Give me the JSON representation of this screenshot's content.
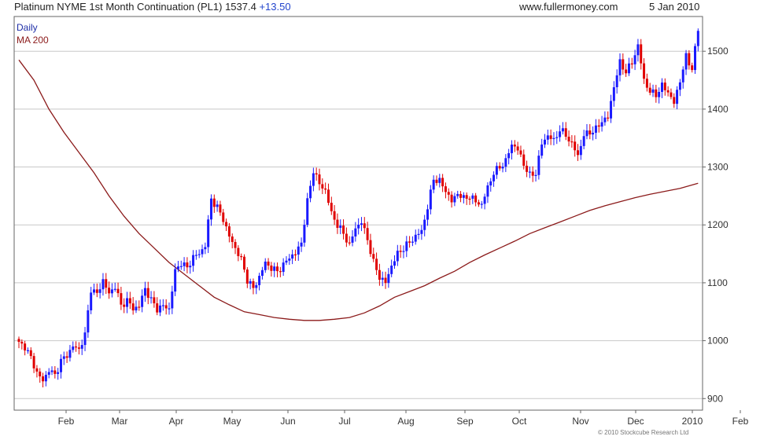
{
  "header": {
    "title": "Platinum NYME 1st Month Continuation (PL1) 1537.4",
    "change": "+13.50",
    "site": "www.fullermoney.com",
    "date": "5 Jan 2010"
  },
  "legend": {
    "daily": "Daily",
    "ma": "MA 200"
  },
  "copyright": "© 2010 Stockcube Research Ltd",
  "colors": {
    "up": "#1a1aff",
    "down": "#e00000",
    "ma": "#8b1a1a",
    "grid": "#c8c8c8",
    "frame": "#666666"
  },
  "chart_data": {
    "type": "candlestick",
    "y_axis": {
      "min": 880,
      "max": 1560,
      "ticks": [
        900,
        1000,
        1100,
        1200,
        1300,
        1400,
        1500
      ],
      "side": "right"
    },
    "x_axis": {
      "labels": [
        "Feb",
        "Mar",
        "Apr",
        "May",
        "Jun",
        "Jul",
        "Aug",
        "Sep",
        "Oct",
        "Nov",
        "Dec",
        "2010",
        "Feb"
      ]
    },
    "grid": true,
    "closes": [
      [
        0,
        995
      ],
      [
        2,
        990
      ],
      [
        4,
        970
      ],
      [
        6,
        945
      ],
      [
        8,
        930
      ],
      [
        10,
        950
      ],
      [
        12,
        940
      ],
      [
        14,
        965
      ],
      [
        16,
        975
      ],
      [
        18,
        990
      ],
      [
        20,
        985
      ],
      [
        22,
        1010
      ],
      [
        24,
        1090
      ],
      [
        26,
        1080
      ],
      [
        28,
        1105
      ],
      [
        30,
        1080
      ],
      [
        32,
        1095
      ],
      [
        34,
        1060
      ],
      [
        36,
        1070
      ],
      [
        38,
        1055
      ],
      [
        40,
        1060
      ],
      [
        42,
        1090
      ],
      [
        44,
        1070
      ],
      [
        46,
        1055
      ],
      [
        48,
        1060
      ],
      [
        50,
        1055
      ],
      [
        52,
        1120
      ],
      [
        54,
        1135
      ],
      [
        56,
        1125
      ],
      [
        58,
        1145
      ],
      [
        60,
        1150
      ],
      [
        62,
        1165
      ],
      [
        64,
        1245
      ],
      [
        66,
        1230
      ],
      [
        68,
        1210
      ],
      [
        70,
        1180
      ],
      [
        72,
        1160
      ],
      [
        74,
        1140
      ],
      [
        76,
        1105
      ],
      [
        78,
        1090
      ],
      [
        80,
        1110
      ],
      [
        82,
        1135
      ],
      [
        84,
        1125
      ],
      [
        86,
        1120
      ],
      [
        88,
        1130
      ],
      [
        90,
        1145
      ],
      [
        92,
        1150
      ],
      [
        94,
        1170
      ],
      [
        96,
        1240
      ],
      [
        98,
        1295
      ],
      [
        100,
        1270
      ],
      [
        102,
        1260
      ],
      [
        104,
        1220
      ],
      [
        106,
        1200
      ],
      [
        108,
        1185
      ],
      [
        110,
        1165
      ],
      [
        112,
        1195
      ],
      [
        114,
        1205
      ],
      [
        116,
        1175
      ],
      [
        118,
        1135
      ],
      [
        120,
        1110
      ],
      [
        122,
        1100
      ],
      [
        124,
        1130
      ],
      [
        126,
        1150
      ],
      [
        128,
        1160
      ],
      [
        130,
        1170
      ],
      [
        132,
        1180
      ],
      [
        134,
        1190
      ],
      [
        136,
        1230
      ],
      [
        138,
        1280
      ],
      [
        140,
        1275
      ],
      [
        142,
        1260
      ],
      [
        144,
        1240
      ],
      [
        146,
        1255
      ],
      [
        148,
        1245
      ],
      [
        150,
        1250
      ],
      [
        152,
        1240
      ],
      [
        154,
        1235
      ],
      [
        156,
        1265
      ],
      [
        158,
        1290
      ],
      [
        160,
        1300
      ],
      [
        162,
        1310
      ],
      [
        164,
        1340
      ],
      [
        166,
        1330
      ],
      [
        168,
        1305
      ],
      [
        170,
        1285
      ],
      [
        172,
        1290
      ],
      [
        174,
        1340
      ],
      [
        176,
        1355
      ],
      [
        178,
        1345
      ],
      [
        180,
        1365
      ],
      [
        182,
        1355
      ],
      [
        184,
        1340
      ],
      [
        186,
        1320
      ],
      [
        188,
        1355
      ],
      [
        190,
        1360
      ],
      [
        192,
        1365
      ],
      [
        194,
        1380
      ],
      [
        196,
        1385
      ],
      [
        198,
        1440
      ],
      [
        200,
        1480
      ],
      [
        202,
        1465
      ],
      [
        204,
        1480
      ],
      [
        206,
        1510
      ],
      [
        208,
        1450
      ],
      [
        210,
        1430
      ],
      [
        212,
        1425
      ],
      [
        214,
        1440
      ],
      [
        216,
        1430
      ],
      [
        218,
        1410
      ],
      [
        220,
        1450
      ],
      [
        222,
        1490
      ],
      [
        224,
        1470
      ],
      [
        226,
        1537.4
      ]
    ],
    "ma200": [
      [
        0,
        1485
      ],
      [
        5,
        1450
      ],
      [
        10,
        1400
      ],
      [
        15,
        1360
      ],
      [
        20,
        1325
      ],
      [
        25,
        1290
      ],
      [
        30,
        1250
      ],
      [
        35,
        1215
      ],
      [
        40,
        1185
      ],
      [
        45,
        1160
      ],
      [
        50,
        1135
      ],
      [
        55,
        1115
      ],
      [
        60,
        1095
      ],
      [
        65,
        1075
      ],
      [
        70,
        1062
      ],
      [
        75,
        1050
      ],
      [
        80,
        1045
      ],
      [
        85,
        1040
      ],
      [
        90,
        1037
      ],
      [
        95,
        1035
      ],
      [
        100,
        1035
      ],
      [
        105,
        1037
      ],
      [
        110,
        1040
      ],
      [
        115,
        1048
      ],
      [
        120,
        1060
      ],
      [
        125,
        1075
      ],
      [
        130,
        1085
      ],
      [
        135,
        1095
      ],
      [
        140,
        1108
      ],
      [
        145,
        1120
      ],
      [
        150,
        1135
      ],
      [
        155,
        1148
      ],
      [
        160,
        1160
      ],
      [
        165,
        1172
      ],
      [
        170,
        1185
      ],
      [
        175,
        1195
      ],
      [
        180,
        1205
      ],
      [
        185,
        1215
      ],
      [
        190,
        1225
      ],
      [
        195,
        1233
      ],
      [
        200,
        1240
      ],
      [
        205,
        1247
      ],
      [
        210,
        1253
      ],
      [
        215,
        1258
      ],
      [
        220,
        1263
      ],
      [
        226,
        1272
      ]
    ]
  }
}
